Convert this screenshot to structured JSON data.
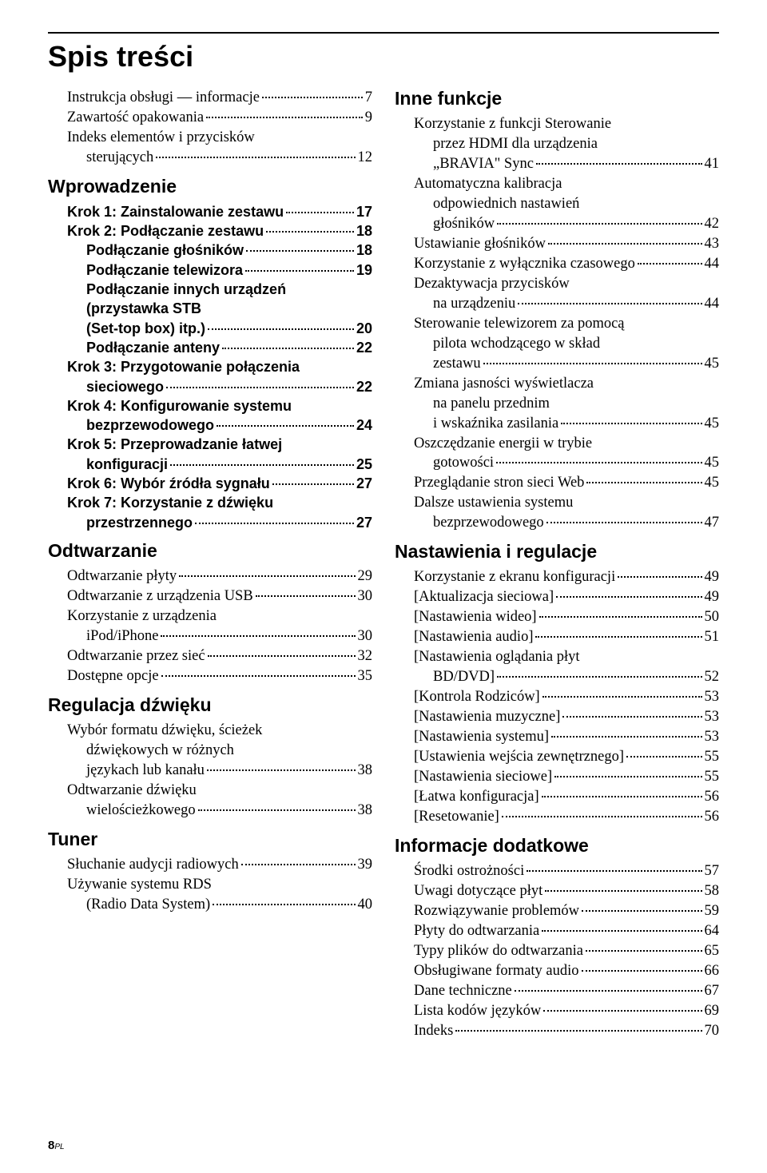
{
  "title": "Spis treści",
  "footer_page": "8",
  "footer_suffix": "PL",
  "left": [
    {
      "type": "entry",
      "bold": false,
      "indent": 1,
      "label": "Instrukcja obsługi — informacje",
      "page": "7"
    },
    {
      "type": "entry",
      "bold": false,
      "indent": 1,
      "label": "Zawartość opakowania",
      "page": "9"
    },
    {
      "type": "cont",
      "bold": false,
      "indent": 1,
      "text": "Indeks elementów i przycisków"
    },
    {
      "type": "entry",
      "bold": false,
      "indent": 2,
      "label": "sterujących",
      "page": "12"
    },
    {
      "type": "heading",
      "text": "Wprowadzenie"
    },
    {
      "type": "entry",
      "bold": true,
      "indent": 1,
      "label": "Krok 1: Zainstalowanie zestawu",
      "page": "17"
    },
    {
      "type": "entry",
      "bold": true,
      "indent": 1,
      "label": "Krok 2: Podłączanie zestawu",
      "page": "18"
    },
    {
      "type": "entry",
      "bold": true,
      "indent": 2,
      "label": "Podłączanie głośników",
      "page": "18"
    },
    {
      "type": "entry",
      "bold": true,
      "indent": 2,
      "label": "Podłączanie telewizora",
      "page": "19"
    },
    {
      "type": "cont",
      "bold": true,
      "indent": 2,
      "text": "Podłączanie innych urządzeń"
    },
    {
      "type": "cont",
      "bold": true,
      "indent": 2,
      "text": "(przystawka STB"
    },
    {
      "type": "entry",
      "bold": true,
      "indent": 2,
      "label": "(Set-top box) itp.)",
      "page": "20"
    },
    {
      "type": "entry",
      "bold": true,
      "indent": 2,
      "label": "Podłączanie anteny",
      "page": "22"
    },
    {
      "type": "cont",
      "bold": true,
      "indent": 1,
      "text": "Krok 3: Przygotowanie połączenia"
    },
    {
      "type": "entry",
      "bold": true,
      "indent": 2,
      "label": "sieciowego",
      "page": "22"
    },
    {
      "type": "cont",
      "bold": true,
      "indent": 1,
      "text": "Krok 4: Konfigurowanie systemu"
    },
    {
      "type": "entry",
      "bold": true,
      "indent": 2,
      "label": "bezprzewodowego",
      "page": "24"
    },
    {
      "type": "cont",
      "bold": true,
      "indent": 1,
      "text": "Krok 5: Przeprowadzanie łatwej"
    },
    {
      "type": "entry",
      "bold": true,
      "indent": 2,
      "label": "konfiguracji",
      "page": "25"
    },
    {
      "type": "entry",
      "bold": true,
      "indent": 1,
      "label": "Krok 6: Wybór źródła sygnału",
      "page": "27"
    },
    {
      "type": "cont",
      "bold": true,
      "indent": 1,
      "text": "Krok 7: Korzystanie z dźwięku"
    },
    {
      "type": "entry",
      "bold": true,
      "indent": 2,
      "label": "przestrzennego",
      "page": "27"
    },
    {
      "type": "heading",
      "text": "Odtwarzanie"
    },
    {
      "type": "entry",
      "bold": false,
      "indent": 1,
      "label": "Odtwarzanie płyty",
      "page": "29"
    },
    {
      "type": "entry",
      "bold": false,
      "indent": 1,
      "label": "Odtwarzanie z urządzenia USB",
      "page": "30"
    },
    {
      "type": "cont",
      "bold": false,
      "indent": 1,
      "text": "Korzystanie z urządzenia"
    },
    {
      "type": "entry",
      "bold": false,
      "indent": 2,
      "label": "iPod/iPhone",
      "page": "30"
    },
    {
      "type": "entry",
      "bold": false,
      "indent": 1,
      "label": "Odtwarzanie przez sieć",
      "page": "32"
    },
    {
      "type": "entry",
      "bold": false,
      "indent": 1,
      "label": "Dostępne opcje",
      "page": "35"
    },
    {
      "type": "heading",
      "text": "Regulacja dźwięku"
    },
    {
      "type": "cont",
      "bold": false,
      "indent": 1,
      "text": "Wybór formatu dźwięku, ścieżek"
    },
    {
      "type": "cont",
      "bold": false,
      "indent": 2,
      "text": "dźwiękowych w różnych"
    },
    {
      "type": "entry",
      "bold": false,
      "indent": 2,
      "label": "językach lub kanału",
      "page": "38"
    },
    {
      "type": "cont",
      "bold": false,
      "indent": 1,
      "text": "Odtwarzanie dźwięku"
    },
    {
      "type": "entry",
      "bold": false,
      "indent": 2,
      "label": "wielościeżkowego",
      "page": "38"
    },
    {
      "type": "heading",
      "text": "Tuner"
    },
    {
      "type": "entry",
      "bold": false,
      "indent": 1,
      "label": "Słuchanie audycji radiowych",
      "page": "39"
    },
    {
      "type": "cont",
      "bold": false,
      "indent": 1,
      "text": "Używanie systemu RDS"
    },
    {
      "type": "entry",
      "bold": false,
      "indent": 2,
      "label": "(Radio Data System)",
      "page": "40"
    }
  ],
  "right": [
    {
      "type": "heading",
      "first": true,
      "text": "Inne funkcje"
    },
    {
      "type": "cont",
      "bold": false,
      "indent": 1,
      "text": "Korzystanie z funkcji Sterowanie"
    },
    {
      "type": "cont",
      "bold": false,
      "indent": 2,
      "text": "przez HDMI dla urządzenia"
    },
    {
      "type": "entry",
      "bold": false,
      "indent": 2,
      "label": "„BRAVIA\" Sync",
      "page": "41"
    },
    {
      "type": "cont",
      "bold": false,
      "indent": 1,
      "text": "Automatyczna kalibracja"
    },
    {
      "type": "cont",
      "bold": false,
      "indent": 2,
      "text": "odpowiednich nastawień"
    },
    {
      "type": "entry",
      "bold": false,
      "indent": 2,
      "label": "głośników",
      "page": "42"
    },
    {
      "type": "entry",
      "bold": false,
      "indent": 1,
      "label": "Ustawianie głośników",
      "page": "43"
    },
    {
      "type": "entry",
      "bold": false,
      "indent": 1,
      "label": "Korzystanie z wyłącznika czasowego",
      "page": "44"
    },
    {
      "type": "cont",
      "bold": false,
      "indent": 1,
      "text": "Dezaktywacja przycisków"
    },
    {
      "type": "entry",
      "bold": false,
      "indent": 2,
      "label": "na urządzeniu",
      "page": "44"
    },
    {
      "type": "cont",
      "bold": false,
      "indent": 1,
      "text": "Sterowanie telewizorem za pomocą"
    },
    {
      "type": "cont",
      "bold": false,
      "indent": 2,
      "text": "pilota wchodzącego w skład"
    },
    {
      "type": "entry",
      "bold": false,
      "indent": 2,
      "label": "zestawu",
      "page": "45"
    },
    {
      "type": "cont",
      "bold": false,
      "indent": 1,
      "text": "Zmiana jasności wyświetlacza"
    },
    {
      "type": "cont",
      "bold": false,
      "indent": 2,
      "text": "na panelu przednim"
    },
    {
      "type": "entry",
      "bold": false,
      "indent": 2,
      "label": "i wskaźnika zasilania",
      "page": "45"
    },
    {
      "type": "cont",
      "bold": false,
      "indent": 1,
      "text": "Oszczędzanie energii w trybie"
    },
    {
      "type": "entry",
      "bold": false,
      "indent": 2,
      "label": "gotowości",
      "page": "45"
    },
    {
      "type": "entry",
      "bold": false,
      "indent": 1,
      "label": "Przeglądanie stron sieci Web",
      "page": "45"
    },
    {
      "type": "cont",
      "bold": false,
      "indent": 1,
      "text": "Dalsze ustawienia systemu"
    },
    {
      "type": "entry",
      "bold": false,
      "indent": 2,
      "label": "bezprzewodowego",
      "page": "47"
    },
    {
      "type": "heading",
      "text": "Nastawienia i regulacje"
    },
    {
      "type": "entry",
      "bold": false,
      "indent": 1,
      "label": "Korzystanie z ekranu konfiguracji",
      "page": "49"
    },
    {
      "type": "entry",
      "bold": false,
      "indent": 1,
      "label": "[Aktualizacja sieciowa]",
      "page": "49"
    },
    {
      "type": "entry",
      "bold": false,
      "indent": 1,
      "label": "[Nastawienia wideo]",
      "page": "50"
    },
    {
      "type": "entry",
      "bold": false,
      "indent": 1,
      "label": "[Nastawienia audio]",
      "page": "51"
    },
    {
      "type": "cont",
      "bold": false,
      "indent": 1,
      "text": "[Nastawienia oglądania płyt"
    },
    {
      "type": "entry",
      "bold": false,
      "indent": 2,
      "label": "BD/DVD]",
      "page": "52"
    },
    {
      "type": "entry",
      "bold": false,
      "indent": 1,
      "label": "[Kontrola Rodziców]",
      "page": "53"
    },
    {
      "type": "entry",
      "bold": false,
      "indent": 1,
      "label": "[Nastawienia muzyczne]",
      "page": "53"
    },
    {
      "type": "entry",
      "bold": false,
      "indent": 1,
      "label": "[Nastawienia systemu]",
      "page": "53"
    },
    {
      "type": "entry",
      "bold": false,
      "indent": 1,
      "label": "[Ustawienia wejścia zewnętrznego]",
      "page": "55"
    },
    {
      "type": "entry",
      "bold": false,
      "indent": 1,
      "label": "[Nastawienia sieciowe]",
      "page": "55"
    },
    {
      "type": "entry",
      "bold": false,
      "indent": 1,
      "label": "[Łatwa konfiguracja]",
      "page": "56"
    },
    {
      "type": "entry",
      "bold": false,
      "indent": 1,
      "label": "[Resetowanie]",
      "page": "56"
    },
    {
      "type": "heading",
      "text": "Informacje dodatkowe"
    },
    {
      "type": "entry",
      "bold": false,
      "indent": 1,
      "label": "Środki ostrożności",
      "page": "57"
    },
    {
      "type": "entry",
      "bold": false,
      "indent": 1,
      "label": "Uwagi dotyczące płyt",
      "page": "58"
    },
    {
      "type": "entry",
      "bold": false,
      "indent": 1,
      "label": "Rozwiązywanie problemów",
      "page": "59"
    },
    {
      "type": "entry",
      "bold": false,
      "indent": 1,
      "label": "Płyty do odtwarzania",
      "page": "64"
    },
    {
      "type": "entry",
      "bold": false,
      "indent": 1,
      "label": "Typy plików do odtwarzania",
      "page": "65"
    },
    {
      "type": "entry",
      "bold": false,
      "indent": 1,
      "label": "Obsługiwane formaty audio",
      "page": "66"
    },
    {
      "type": "entry",
      "bold": false,
      "indent": 1,
      "label": "Dane techniczne",
      "page": "67"
    },
    {
      "type": "entry",
      "bold": false,
      "indent": 1,
      "label": "Lista kodów języków",
      "page": "69"
    },
    {
      "type": "entry",
      "bold": false,
      "indent": 1,
      "label": "Indeks",
      "page": "70"
    }
  ]
}
